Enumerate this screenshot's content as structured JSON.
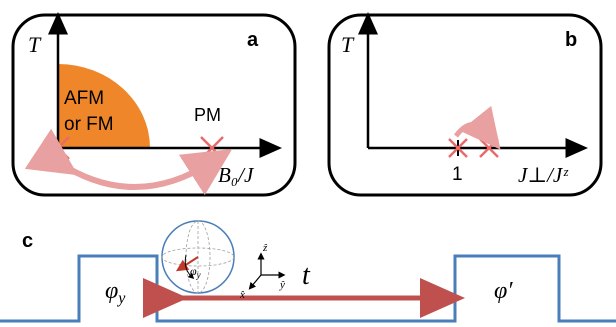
{
  "panel_a": {
    "label": "a",
    "y_axis": "T",
    "x_axis": "B₀/J",
    "region_label_line1": "AFM",
    "region_label_line2": "or FM",
    "pm_label": "PM",
    "colors": {
      "region": "#f0862a",
      "arrow": "#e8a0a0",
      "cross": "#e86b6b"
    }
  },
  "panel_b": {
    "label": "b",
    "y_axis": "T",
    "x_axis": "J⊥/Jᶻ",
    "tick_value": "1"
  },
  "panel_c": {
    "label": "c",
    "pulse1_label": "φy",
    "pulse2_label": "φ′",
    "time_label": "t",
    "bloch_angle_label": "φy",
    "frame_axes": {
      "z": "ẑ",
      "y": "ŷ",
      "x": "x̂"
    },
    "colors": {
      "pulse": "#4a7ebb",
      "arrow": "#c0504d"
    }
  }
}
